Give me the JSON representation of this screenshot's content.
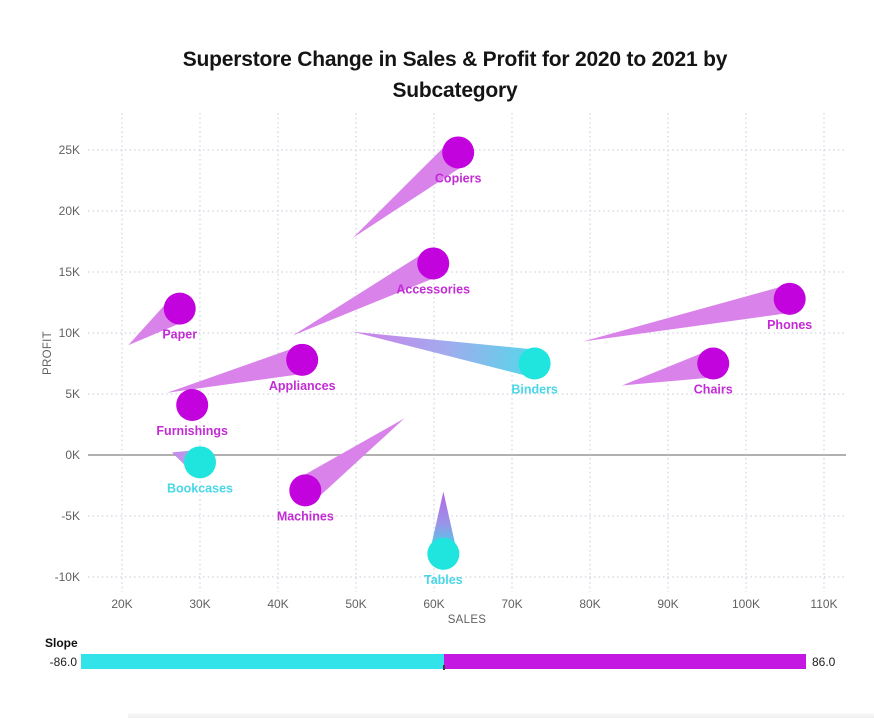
{
  "chart_data": {
    "type": "scatter",
    "subtype": "comet-change-plot",
    "title": "Superstore Change in Sales & Profit for 2020 to 2021 by Subcategory",
    "title_lines": [
      "Superstore Change in Sales & Profit for 2020 to 2021 by",
      "Subcategory"
    ],
    "xlabel": "SALES",
    "ylabel": "PROFIT",
    "xlim_k": [
      15.6,
      114.4
    ],
    "ylim_k": [
      -11.3,
      28.0
    ],
    "grid": "dotted",
    "x_ticks": [
      {
        "value_k": 20,
        "label": "20K"
      },
      {
        "value_k": 30,
        "label": "30K"
      },
      {
        "value_k": 40,
        "label": "40K"
      },
      {
        "value_k": 50,
        "label": "50K"
      },
      {
        "value_k": 60,
        "label": "60K"
      },
      {
        "value_k": 70,
        "label": "70K"
      },
      {
        "value_k": 80,
        "label": "80K"
      },
      {
        "value_k": 90,
        "label": "90K"
      },
      {
        "value_k": 100,
        "label": "100K"
      },
      {
        "value_k": 110,
        "label": "110K"
      }
    ],
    "y_ticks": [
      {
        "value_k": 25,
        "label": "25K"
      },
      {
        "value_k": 20,
        "label": "20K"
      },
      {
        "value_k": 15,
        "label": "15K"
      },
      {
        "value_k": 10,
        "label": "10K"
      },
      {
        "value_k": 5,
        "label": "5K"
      },
      {
        "value_k": 0,
        "label": "0K"
      },
      {
        "value_k": -5,
        "label": "-5K"
      },
      {
        "value_k": -10,
        "label": "-10K"
      }
    ],
    "series": [
      {
        "name": "Copiers",
        "label": "Copiers",
        "sales_2021_k": 63.1,
        "profit_2021_k": 24.8,
        "sales_2020_k": 49.6,
        "profit_2020_k": 17.8,
        "slope_sign": "positive"
      },
      {
        "name": "Accessories",
        "label": "Accessories",
        "sales_2021_k": 59.9,
        "profit_2021_k": 15.7,
        "sales_2020_k": 41.9,
        "profit_2020_k": 9.8,
        "slope_sign": "positive"
      },
      {
        "name": "Paper",
        "label": "Paper",
        "sales_2021_k": 27.4,
        "profit_2021_k": 12.0,
        "sales_2020_k": 20.8,
        "profit_2020_k": 9.0,
        "slope_sign": "positive"
      },
      {
        "name": "Phones",
        "label": "Phones",
        "sales_2021_k": 105.6,
        "profit_2021_k": 12.8,
        "sales_2020_k": 79.1,
        "profit_2020_k": 9.3,
        "slope_sign": "positive"
      },
      {
        "name": "Appliances",
        "label": "Appliances",
        "sales_2021_k": 43.1,
        "profit_2021_k": 7.8,
        "sales_2020_k": 25.8,
        "profit_2020_k": 5.1,
        "slope_sign": "positive"
      },
      {
        "name": "Binders",
        "label": "Binders",
        "sales_2021_k": 72.9,
        "profit_2021_k": 7.5,
        "sales_2020_k": 49.6,
        "profit_2020_k": 10.1,
        "slope_sign": "negative",
        "tail_colors": [
          "#cf7ce9",
          "#a3aaee",
          "#55d7e9"
        ]
      },
      {
        "name": "Chairs",
        "label": "Chairs",
        "sales_2021_k": 95.8,
        "profit_2021_k": 7.5,
        "sales_2020_k": 84.1,
        "profit_2020_k": 5.7,
        "slope_sign": "positive"
      },
      {
        "name": "Furnishings",
        "label": "Furnishings",
        "sales_2021_k": 29.0,
        "profit_2021_k": 4.1,
        "sales_2020_k": 29.0,
        "profit_2020_k": 4.1,
        "slope_sign": "positive"
      },
      {
        "name": "Bookcases",
        "label": "Bookcases",
        "sales_2021_k": 30.0,
        "profit_2021_k": -0.6,
        "sales_2020_k": 26.4,
        "profit_2020_k": 0.2,
        "slope_sign": "negative",
        "tail_colors": [
          "#cc80e8",
          "#9fc0ec"
        ]
      },
      {
        "name": "Machines",
        "label": "Machines",
        "sales_2021_k": 43.5,
        "profit_2021_k": -2.9,
        "sales_2020_k": 56.2,
        "profit_2020_k": 3.0,
        "slope_sign": "positive"
      },
      {
        "name": "Tables",
        "label": "Tables",
        "sales_2021_k": 61.2,
        "profit_2021_k": -8.1,
        "sales_2020_k": 61.2,
        "profit_2020_k": -3.0,
        "slope_sign": "negative",
        "tail_colors": [
          "#b167e3",
          "#9b93e9",
          "#35dde4"
        ]
      }
    ]
  },
  "legend": {
    "title": "Slope",
    "min_label": "-86.0",
    "max_label": "86.0",
    "min_value": -86.0,
    "max_value": 86.0,
    "negative_color": "#33e3ea",
    "positive_color": "#c417e1"
  },
  "colors": {
    "head_positive": "#c203dd",
    "head_negative": "#20e5df",
    "tail_positive": "#d983ea",
    "label_positive": "#c32bd5",
    "label_negative": "#49d7e8",
    "gridline": "#c5ced8",
    "zero_line": "#b0b0b0",
    "axis_text": "#616161",
    "title_text": "#141414"
  },
  "icons": {}
}
